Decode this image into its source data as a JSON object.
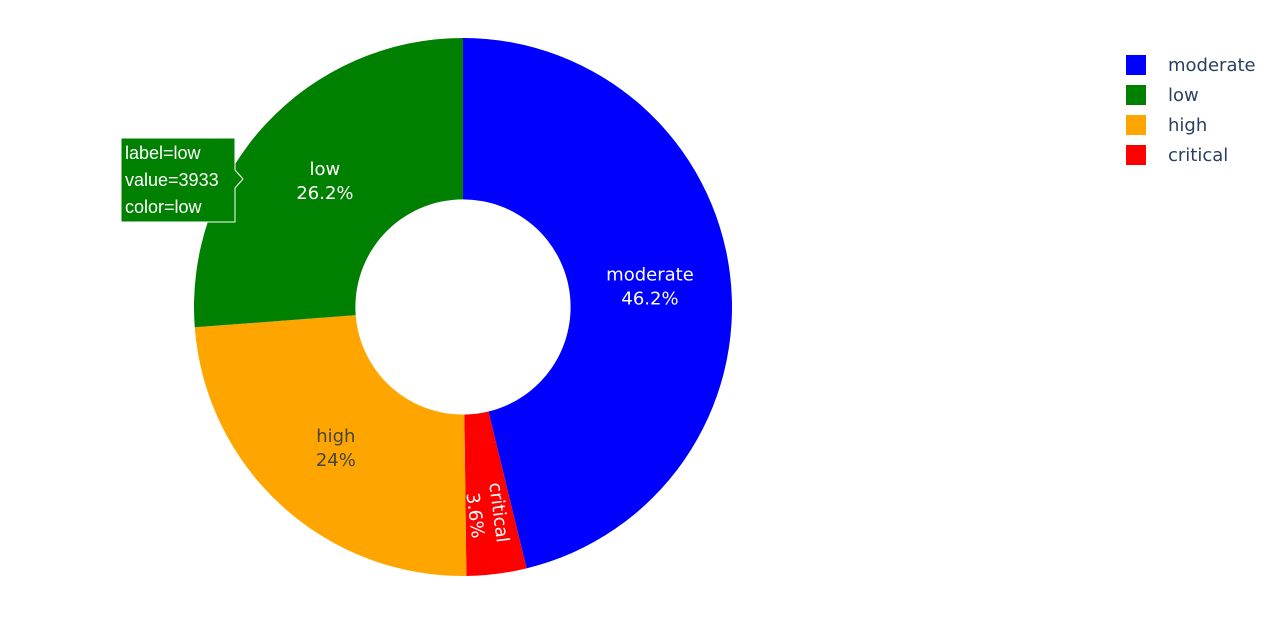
{
  "chart_data": {
    "type": "pie",
    "hole": 0.4,
    "slices": [
      {
        "label": "moderate",
        "value": 6935,
        "percent_text": "46.2%",
        "color": "#0000ff",
        "text_color": "#ffffff"
      },
      {
        "label": "critical",
        "value": 540,
        "percent_text": "3.6%",
        "color": "#ff0000",
        "text_color": "#ffffff"
      },
      {
        "label": "high",
        "value": 3602,
        "percent_text": "24%",
        "color": "#ffa500",
        "text_color": "#444444"
      },
      {
        "label": "low",
        "value": 3933,
        "percent_text": "26.2%",
        "color": "#008000",
        "text_color": "#ffffff"
      }
    ],
    "legend": {
      "placement": "top-right",
      "entries": [
        {
          "label": "moderate",
          "color": "#0000ff"
        },
        {
          "label": "low",
          "color": "#008000"
        },
        {
          "label": "high",
          "color": "#ffa500"
        },
        {
          "label": "critical",
          "color": "#ff0000"
        }
      ]
    },
    "tooltip": {
      "slice": "low",
      "lines": [
        "label=low",
        "value=3933",
        "color=low"
      ]
    }
  }
}
